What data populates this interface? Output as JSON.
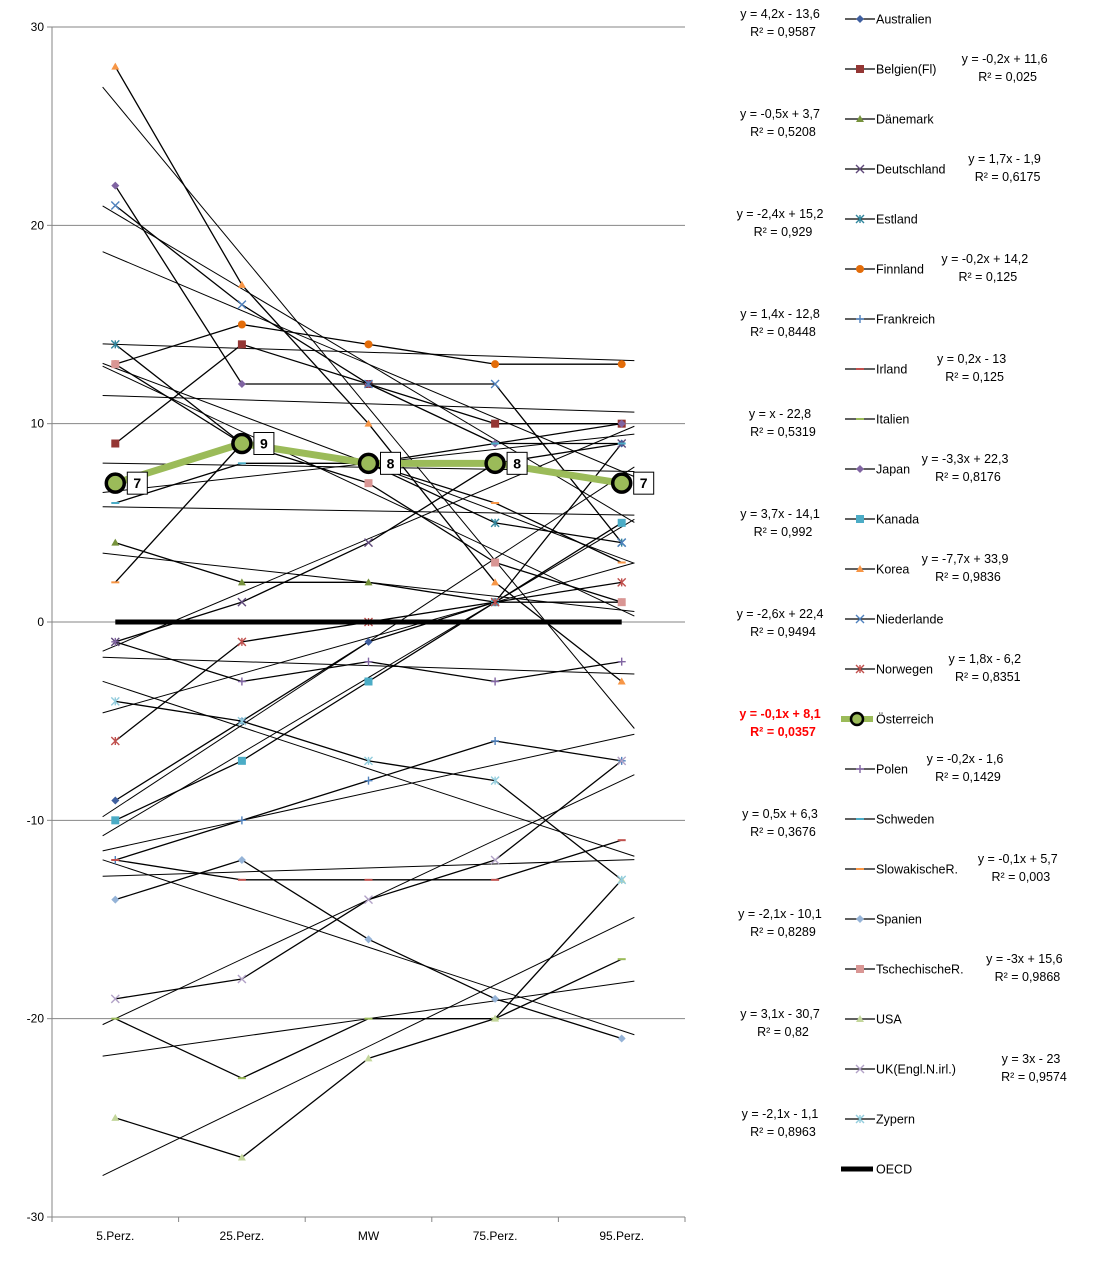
{
  "chart_data": {
    "type": "line",
    "title": "",
    "xlabel": "",
    "ylabel": "",
    "categories": [
      "5.Perz.",
      "25.Perz.",
      "MW",
      "75.Perz.",
      "95.Perz."
    ],
    "ylim": [
      -30,
      30
    ],
    "yticks": [
      30,
      20,
      10,
      0,
      -10,
      -20,
      -30
    ],
    "ytick_labels": [
      "30",
      "20",
      "10",
      "0",
      "-10",
      "-20",
      "-30"
    ],
    "grid": "horizontal",
    "legend_position": "right",
    "highlight_series": "Österreich",
    "series": [
      {
        "name": "Australien",
        "values": [
          -9,
          -5,
          -1,
          1,
          9
        ],
        "color": "#3f5f9f",
        "marker": "diamond",
        "trend": {
          "equation": "y = 4,2x - 13,6",
          "r2": "R² = 0,9587"
        }
      },
      {
        "name": "Belgien(Fl)",
        "values": [
          9,
          14,
          12,
          10,
          10
        ],
        "color": "#943634",
        "marker": "square",
        "trend": {
          "equation": "y = -0,2x + 11,6",
          "r2": "R² = 0,025"
        }
      },
      {
        "name": "Dänemark",
        "values": [
          4,
          2,
          2,
          1,
          1
        ],
        "color": "#76923c",
        "marker": "triangle",
        "trend": {
          "equation": "y = -0,5x + 3,7",
          "r2": "R² = 0,5208"
        }
      },
      {
        "name": "Deutschland",
        "values": [
          -1,
          1,
          4,
          8,
          9
        ],
        "color": "#5f497a",
        "marker": "x",
        "trend": {
          "equation": "y = 1,7x - 1,9",
          "r2": "R² = 0,6175"
        }
      },
      {
        "name": "Estland",
        "values": [
          14,
          9,
          8,
          5,
          4
        ],
        "color": "#31859c",
        "marker": "star",
        "trend": {
          "equation": "y = -2,4x + 15,2",
          "r2": "R² = 0,929"
        }
      },
      {
        "name": "Finnland",
        "values": [
          13,
          15,
          14,
          13,
          13
        ],
        "color": "#e36c09",
        "marker": "circle",
        "trend": {
          "equation": "y = -0,2x + 14,2",
          "r2": "R² = 0,125"
        }
      },
      {
        "name": "Frankreich",
        "values": [
          -12,
          -10,
          -8,
          -6,
          -7
        ],
        "color": "#4f81bd",
        "marker": "plus",
        "trend": {
          "equation": "y = 1,4x - 12,8",
          "r2": "R² = 0,8448"
        }
      },
      {
        "name": "Irland",
        "values": [
          -12,
          -13,
          -13,
          -13,
          -11
        ],
        "color": "#c0504d",
        "marker": "dash",
        "trend": {
          "equation": "y = 0,2x - 13",
          "r2": "R² = 0,125"
        }
      },
      {
        "name": "Italien",
        "values": [
          -20,
          -23,
          -20,
          -20,
          -17
        ],
        "color": "#9bbb59",
        "marker": "dash",
        "trend": {
          "equation": "y = x - 22,8",
          "r2": "R² = 0,5319"
        }
      },
      {
        "name": "Japan",
        "values": [
          22,
          12,
          12,
          9,
          10
        ],
        "color": "#8064a2",
        "marker": "diamond",
        "trend": {
          "equation": "y = -3,3x + 22,3",
          "r2": "R² = 0,8176"
        }
      },
      {
        "name": "Kanada",
        "values": [
          -10,
          -7,
          -3,
          1,
          5
        ],
        "color": "#4bacc6",
        "marker": "square",
        "trend": {
          "equation": "y = 3,7x - 14,1",
          "r2": "R² = 0,992"
        }
      },
      {
        "name": "Korea",
        "values": [
          28,
          17,
          10,
          2,
          -3
        ],
        "color": "#f79646",
        "marker": "triangle",
        "trend": {
          "equation": "y = -7,7x + 33,9",
          "r2": "R² = 0,9836"
        }
      },
      {
        "name": "Niederlande",
        "values": [
          21,
          16,
          12,
          12,
          4
        ],
        "color": "#4f81bd",
        "marker": "x",
        "trend": {
          "equation": "y = -2,6x + 22,4",
          "r2": "R² = 0,9494"
        }
      },
      {
        "name": "Norwegen",
        "values": [
          -6,
          -1,
          0,
          1,
          2
        ],
        "color": "#c0504d",
        "marker": "star",
        "trend": {
          "equation": "y = 1,8x - 6,2",
          "r2": "R² = 0,8351"
        }
      },
      {
        "name": "Österreich",
        "values": [
          7,
          9,
          8,
          8,
          7
        ],
        "color": "#9bbb59",
        "marker": "ring",
        "trend": {
          "equation": "y = -0,1x + 8,1",
          "r2": "R² = 0,0357"
        }
      },
      {
        "name": "Polen",
        "values": [
          -1,
          -3,
          -2,
          -3,
          -2
        ],
        "color": "#8064a2",
        "marker": "plus",
        "trend": {
          "equation": "y = -0,2x - 1,6",
          "r2": "R² = 0,1429"
        }
      },
      {
        "name": "Schweden",
        "values": [
          6,
          8,
          8,
          9,
          9
        ],
        "color": "#4bacc6",
        "marker": "dash",
        "trend": {
          "equation": "y = 0,5x + 6,3",
          "r2": "R² = 0,3676"
        }
      },
      {
        "name": "SlowakischeR.",
        "values": [
          2,
          9,
          8,
          6,
          3
        ],
        "color": "#f79646",
        "marker": "dash",
        "trend": {
          "equation": "y = -0,1x + 5,7",
          "r2": "R² = 0,003"
        }
      },
      {
        "name": "Spanien",
        "values": [
          -14,
          -12,
          -16,
          -19,
          -21
        ],
        "color": "#95b3d7",
        "marker": "diamond",
        "trend": {
          "equation": "y = -2,1x - 10,1",
          "r2": "R² = 0,8289"
        }
      },
      {
        "name": "TschechischeR.",
        "values": [
          13,
          9,
          7,
          3,
          1
        ],
        "color": "#d99694",
        "marker": "square",
        "trend": {
          "equation": "y = -3x + 15,6",
          "r2": "R² = 0,9868"
        }
      },
      {
        "name": "USA",
        "values": [
          -25,
          -27,
          -22,
          -20,
          -13
        ],
        "color": "#c3d69b",
        "marker": "triangle",
        "trend": {
          "equation": "y = 3,1x - 30,7",
          "r2": "R² = 0,82"
        }
      },
      {
        "name": "UK(Engl.N.irl.)",
        "values": [
          -19,
          -18,
          -14,
          -12,
          -7
        ],
        "color": "#b2a2c7",
        "marker": "x",
        "trend": {
          "equation": "y = 3x - 23",
          "r2": "R² = 0,9574"
        }
      },
      {
        "name": "Zypern",
        "values": [
          -4,
          -5,
          -7,
          -8,
          -13
        ],
        "color": "#93cddd",
        "marker": "star",
        "trend": {
          "equation": "y = -2,1x - 1,1",
          "r2": "R² = 0,8963"
        }
      },
      {
        "name": "OECD",
        "values": [
          0,
          0,
          0,
          0,
          0
        ],
        "color": "#000000",
        "marker": "none"
      }
    ],
    "data_labels": [
      {
        "series": "Österreich",
        "values": [
          "7",
          "9",
          "8",
          "8",
          "7"
        ]
      }
    ]
  }
}
